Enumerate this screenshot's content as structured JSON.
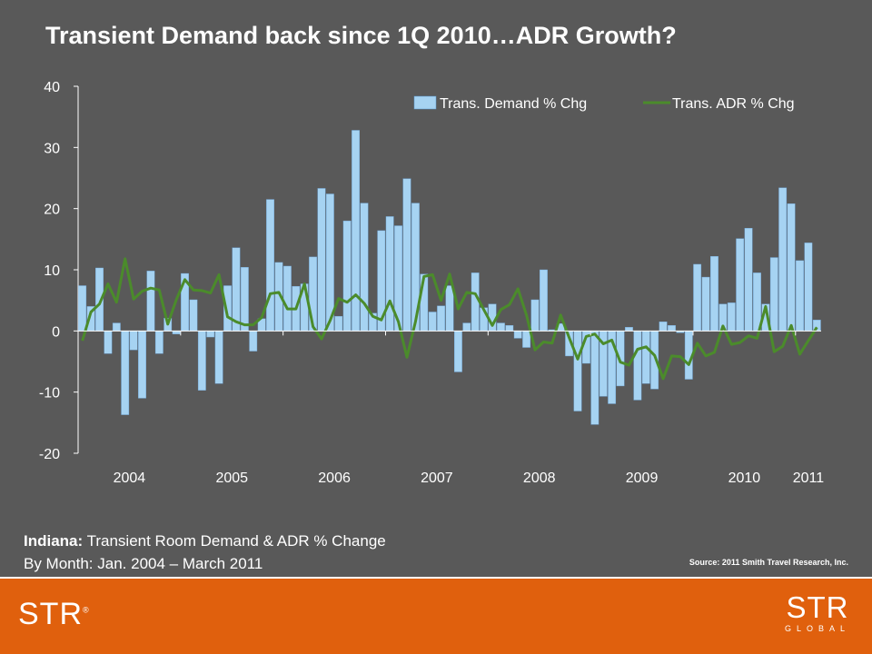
{
  "title": "Transient Demand back since 1Q 2010…ADR Growth?",
  "caption": {
    "state": "Indiana:",
    "line1": "Transient Room Demand & ADR % Change",
    "line2": "By Month: Jan. 2004 – March 2011"
  },
  "source": "Source: 2011 Smith Travel Research, Inc.",
  "footer": {
    "logo_left": "STR",
    "logo_left_mark": "®",
    "logo_right_top": "STR",
    "logo_right_bottom": "GLOBAL",
    "background": "#e0600d"
  },
  "chart_data": {
    "type": "bar",
    "title": "",
    "xlabel": "",
    "ylabel": "",
    "ylim": [
      -20,
      40
    ],
    "yticks": [
      40,
      30,
      20,
      10,
      0,
      -10,
      -20
    ],
    "xtick_labels": [
      "2004",
      "2005",
      "2006",
      "2007",
      "2008",
      "2009",
      "2010",
      "2011"
    ],
    "legend_position": "top-right",
    "grid": false,
    "series": [
      {
        "name": "Trans. Demand % Chg",
        "kind": "bar",
        "color": "#a6d3f2",
        "values": [
          7.4,
          4.0,
          10.3,
          -3.7,
          1.3,
          -13.7,
          -3.1,
          -11.0,
          9.8,
          -3.7,
          2.1,
          -0.5,
          9.4,
          5.1,
          -9.7,
          -1.0,
          -8.6,
          7.4,
          13.6,
          10.4,
          -3.3,
          2.0,
          21.5,
          11.2,
          10.6,
          7.3,
          7.7,
          12.1,
          23.3,
          22.4,
          2.4,
          18.0,
          32.8,
          20.9,
          2.9,
          16.4,
          18.7,
          17.2,
          24.9,
          20.9,
          9.3,
          3.1,
          4.1,
          7.4,
          -6.7,
          1.3,
          9.5,
          3.8,
          4.4,
          1.3,
          0.9,
          -1.2,
          -2.7,
          5.1,
          10.0,
          0.2,
          1.2,
          -4.1,
          -13.1,
          -5.3,
          -15.3,
          -10.7,
          -11.9,
          -9.0,
          0.6,
          -11.3,
          -8.6,
          -9.5,
          1.5,
          0.9,
          -0.3,
          -7.9,
          10.9,
          8.8,
          12.2,
          4.4,
          4.6,
          15.1,
          16.8,
          9.5,
          4.4,
          12.0,
          23.4,
          20.8,
          11.5,
          14.4,
          1.8
        ]
      },
      {
        "name": "Trans. ADR % Chg",
        "kind": "line",
        "color": "#4b8b2b",
        "values": [
          -1.6,
          3.1,
          4.4,
          7.7,
          4.7,
          11.8,
          5.2,
          6.5,
          7.0,
          6.7,
          1.1,
          5.1,
          8.4,
          6.7,
          6.6,
          6.2,
          9.2,
          2.3,
          1.5,
          1.0,
          1.0,
          2.2,
          6.1,
          6.3,
          3.6,
          3.6,
          7.7,
          0.7,
          -1.3,
          1.7,
          5.3,
          4.7,
          5.9,
          4.5,
          2.4,
          1.8,
          4.9,
          1.5,
          -4.3,
          1.5,
          8.9,
          9.2,
          5.0,
          9.3,
          3.6,
          6.3,
          6.1,
          3.5,
          0.9,
          3.5,
          4.3,
          6.9,
          2.6,
          -3.1,
          -1.8,
          -2.0,
          2.6,
          -1.1,
          -4.6,
          -0.9,
          -0.5,
          -2.1,
          -1.5,
          -5.1,
          -5.6,
          -3.0,
          -2.6,
          -4.0,
          -7.8,
          -4.1,
          -4.2,
          -5.5,
          -2.0,
          -4.1,
          -3.5,
          0.8,
          -2.2,
          -1.9,
          -0.8,
          -1.2,
          4.0,
          -3.4,
          -2.5,
          0.9,
          -3.8,
          -1.6,
          0.6
        ]
      }
    ]
  }
}
